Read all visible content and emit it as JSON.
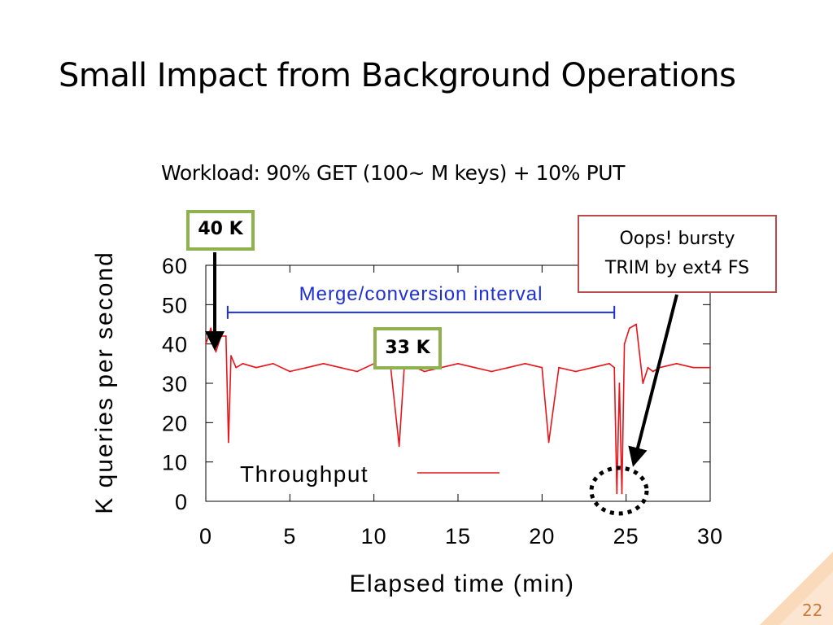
{
  "slide": {
    "title": "Small Impact from Background Operations",
    "subtitle": "Workload: 90% GET (100~ M keys) + 10% PUT",
    "page_number": "22"
  },
  "callouts": {
    "peak_label": "40 K",
    "steady_label": "33 K",
    "trim_line1": "Oops! bursty",
    "trim_line2": "TRIM by ext4 FS"
  },
  "colors": {
    "series": "#e8141a",
    "interval": "#1f2fd6",
    "callout_green": "#8fb24e",
    "callout_red": "#b84c4a"
  },
  "chart_data": {
    "type": "line",
    "xlabel": "Elapsed time (min)",
    "ylabel": "K queries per second",
    "xlim": [
      0,
      30
    ],
    "ylim": [
      0,
      60
    ],
    "xticks": [
      "0",
      "5",
      "10",
      "15",
      "20",
      "25",
      "30"
    ],
    "yticks": [
      "0",
      "10",
      "20",
      "30",
      "40",
      "50",
      "60"
    ],
    "legend_position": "bottom-left",
    "grid": false,
    "series": [
      {
        "name": "Throughput",
        "x": [
          0,
          0.3,
          0.6,
          0.9,
          1.2,
          1.35,
          1.5,
          1.8,
          2.2,
          3,
          4,
          5,
          6,
          7,
          8,
          9,
          10,
          11,
          11.5,
          11.8,
          12,
          13,
          14,
          15,
          16,
          17,
          18,
          19,
          20,
          20.4,
          21,
          22,
          23,
          24,
          24.3,
          24.45,
          24.6,
          24.75,
          24.9,
          25.2,
          25.6,
          26.0,
          26.3,
          26.6,
          27,
          28,
          29,
          30
        ],
        "y": [
          40,
          44,
          38,
          42,
          42,
          15,
          37,
          34,
          35,
          34,
          35,
          33,
          34,
          35,
          34,
          33,
          35,
          34,
          14,
          34,
          35,
          33,
          34,
          35,
          34,
          33,
          34,
          35,
          34,
          15,
          34,
          33,
          34,
          35,
          34,
          2,
          30,
          2,
          40,
          44,
          45,
          30,
          34,
          33,
          34,
          35,
          34,
          34
        ]
      }
    ],
    "annotations": [
      {
        "type": "interval",
        "label": "Merge/conversion interval",
        "x_start": 1.3,
        "x_end": 24.3,
        "y": 53
      }
    ]
  }
}
